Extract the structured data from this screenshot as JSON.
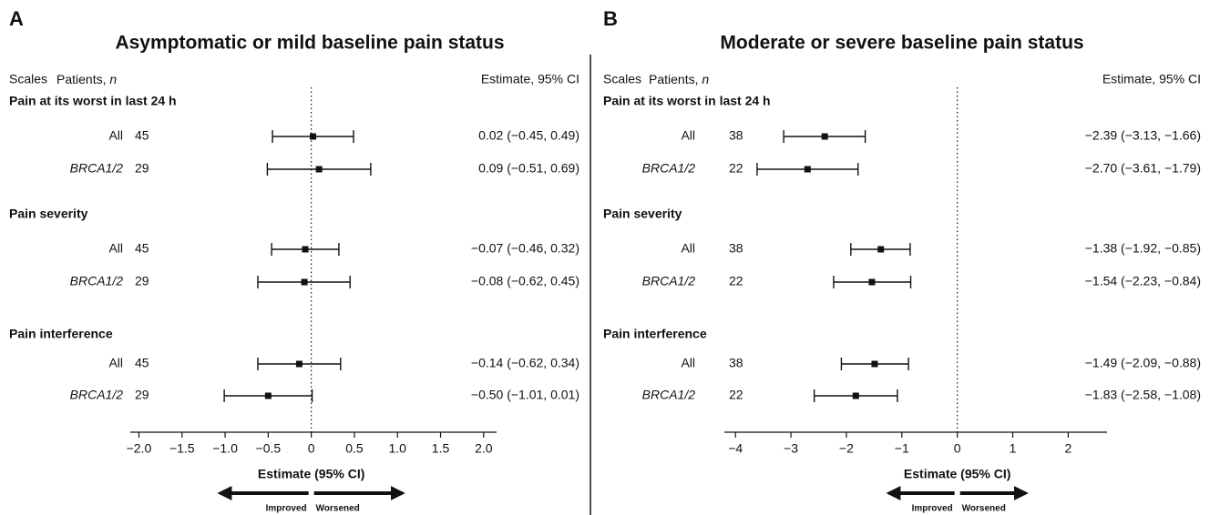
{
  "chart_data": [
    {
      "type": "forest",
      "panel": "A",
      "title": "Asymptomatic or mild baseline pain status",
      "scales_header": "Scales",
      "patients_header": "Patients,",
      "patients_n": "n",
      "estimate_header": "Estimate, 95% CI",
      "groups": [
        {
          "name": "Pain at its worst in last 24 h",
          "rows": [
            {
              "label": "All",
              "n": 45,
              "estimate": 0.02,
              "lower": -0.45,
              "upper": 0.49,
              "value_label": "0.02 (−0.45, 0.49)"
            },
            {
              "label": "BRCA1/2",
              "n": 29,
              "estimate": 0.09,
              "lower": -0.51,
              "upper": 0.69,
              "value_label": "0.09 (−0.51, 0.69)"
            }
          ]
        },
        {
          "name": "Pain severity",
          "rows": [
            {
              "label": "All",
              "n": 45,
              "estimate": -0.07,
              "lower": -0.46,
              "upper": 0.32,
              "value_label": "−0.07 (−0.46, 0.32)"
            },
            {
              "label": "BRCA1/2",
              "n": 29,
              "estimate": -0.08,
              "lower": -0.62,
              "upper": 0.45,
              "value_label": "−0.08 (−0.62, 0.45)"
            }
          ]
        },
        {
          "name": "Pain interference",
          "rows": [
            {
              "label": "All",
              "n": 45,
              "estimate": -0.14,
              "lower": -0.62,
              "upper": 0.34,
              "value_label": "−0.14 (−0.62, 0.34)"
            },
            {
              "label": "BRCA1/2",
              "n": 29,
              "estimate": -0.5,
              "lower": -1.01,
              "upper": 0.01,
              "value_label": "−0.50 (−1.01, 0.01)"
            }
          ]
        }
      ],
      "xlim": [
        -2.1,
        2.15
      ],
      "xticks": [
        {
          "value": -2,
          "label": "−2.0"
        },
        {
          "value": -1.5,
          "label": "−1.5"
        },
        {
          "value": -1,
          "label": "−1.0"
        },
        {
          "value": -0.5,
          "label": "−0.5"
        },
        0,
        0.5,
        {
          "value": 1,
          "label": "1.0"
        },
        1.5,
        {
          "value": 2,
          "label": "2.0"
        }
      ],
      "xlabel": "Estimate (95% CI)",
      "left_arrow": "Improved",
      "right_arrow": "Worsened"
    },
    {
      "type": "forest",
      "panel": "B",
      "title": "Moderate or severe baseline pain status",
      "scales_header": "Scales",
      "patients_header": "Patients,",
      "patients_n": "n",
      "estimate_header": "Estimate, 95% CI",
      "groups": [
        {
          "name": "Pain at its worst in last 24 h",
          "rows": [
            {
              "label": "All",
              "n": 38,
              "estimate": -2.39,
              "lower": -3.13,
              "upper": -1.66,
              "value_label": "−2.39 (−3.13, −1.66)"
            },
            {
              "label": "BRCA1/2",
              "n": 22,
              "estimate": -2.7,
              "lower": -3.61,
              "upper": -1.79,
              "value_label": "−2.70 (−3.61, −1.79)"
            }
          ]
        },
        {
          "name": "Pain severity",
          "rows": [
            {
              "label": "All",
              "n": 38,
              "estimate": -1.38,
              "lower": -1.92,
              "upper": -0.85,
              "value_label": "−1.38 (−1.92, −0.85)"
            },
            {
              "label": "BRCA1/2",
              "n": 22,
              "estimate": -1.54,
              "lower": -2.23,
              "upper": -0.84,
              "value_label": "−1.54 (−2.23, −0.84)"
            }
          ]
        },
        {
          "name": "Pain interference",
          "rows": [
            {
              "label": "All",
              "n": 38,
              "estimate": -1.49,
              "lower": -2.09,
              "upper": -0.88,
              "value_label": "−1.49 (−2.09, −0.88)"
            },
            {
              "label": "BRCA1/2",
              "n": 22,
              "estimate": -1.83,
              "lower": -2.58,
              "upper": -1.08,
              "value_label": "−1.83 (−2.58, −1.08)"
            }
          ]
        }
      ],
      "xlim": [
        -4.2,
        2.7
      ],
      "xticks": [
        {
          "value": -4,
          "label": "−4"
        },
        {
          "value": -3,
          "label": "−3"
        },
        {
          "value": -2,
          "label": "−2"
        },
        {
          "value": -1,
          "label": "−1"
        },
        0,
        1,
        2
      ],
      "xlabel": "Estimate (95% CI)",
      "left_arrow": "Improved",
      "right_arrow": "Worsened"
    }
  ]
}
